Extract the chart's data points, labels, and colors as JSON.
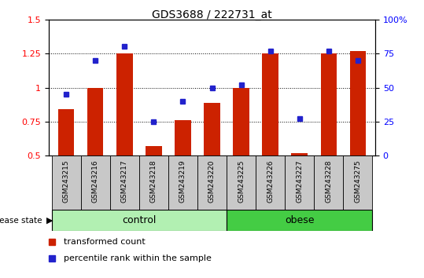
{
  "title": "GDS3688 / 222731_at",
  "samples": [
    "GSM243215",
    "GSM243216",
    "GSM243217",
    "GSM243218",
    "GSM243219",
    "GSM243220",
    "GSM243225",
    "GSM243226",
    "GSM243227",
    "GSM243228",
    "GSM243275"
  ],
  "transformed_count": [
    0.84,
    1.0,
    1.25,
    0.57,
    0.76,
    0.89,
    1.0,
    1.25,
    0.52,
    1.25,
    1.27
  ],
  "percentile_rank": [
    45,
    70,
    80,
    25,
    40,
    50,
    52,
    77,
    27,
    77,
    70
  ],
  "groups": [
    {
      "label": "control",
      "start": 0,
      "end": 6,
      "color": "#b2f0b2"
    },
    {
      "label": "obese",
      "start": 6,
      "end": 11,
      "color": "#44cc44"
    }
  ],
  "ylim_left": [
    0.5,
    1.5
  ],
  "yticks_left": [
    0.5,
    0.75,
    1.0,
    1.25,
    1.5
  ],
  "ytick_labels_left": [
    "0.5",
    "0.75",
    "1",
    "1.25",
    "1.5"
  ],
  "yticks_right_vals": [
    0.5,
    0.75,
    1.0,
    1.25,
    1.5
  ],
  "ytick_labels_right": [
    "0",
    "25",
    "50",
    "75",
    "100%"
  ],
  "bar_color": "#cc2200",
  "dot_color": "#2222cc",
  "bar_width": 0.55,
  "label_transformed": "transformed count",
  "label_percentile": "percentile rank within the sample",
  "disease_state_label": "disease state"
}
